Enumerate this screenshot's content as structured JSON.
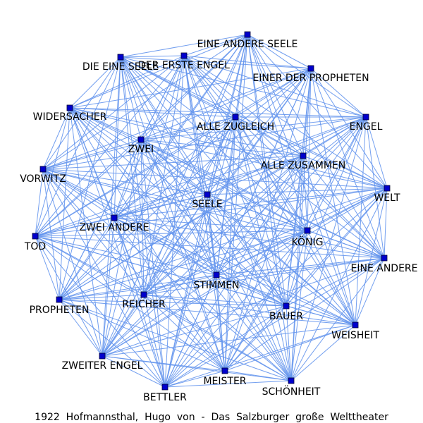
{
  "caption": "1922  Hofmannsthal,  Hugo  von  -  Das  Salzburger  große  Welttheater",
  "colors": {
    "edge": "#6495ed",
    "node": "#0000cc",
    "text": "#000000",
    "background": "#ffffff"
  },
  "nodes": [
    {
      "id": "eine-andere-seele",
      "label": "EINE ANDERE SEELE"
    },
    {
      "id": "der-erste-engel",
      "label": "DER ERSTE ENGEL"
    },
    {
      "id": "die-eine-seele",
      "label": "DIE EINE SEELE"
    },
    {
      "id": "einer-der-propheten",
      "label": "EINER DER PROPHETEN"
    },
    {
      "id": "widersacher",
      "label": "WIDERSACHER"
    },
    {
      "id": "alle-zugleich",
      "label": "ALLE ZUGLEICH"
    },
    {
      "id": "engel",
      "label": "ENGEL"
    },
    {
      "id": "zwei",
      "label": "ZWEI"
    },
    {
      "id": "alle-zusammen",
      "label": "ALLE ZUSAMMEN"
    },
    {
      "id": "vorwitz",
      "label": "VORWITZ"
    },
    {
      "id": "welt",
      "label": "WELT"
    },
    {
      "id": "seele",
      "label": "SEELE"
    },
    {
      "id": "zwei-andere",
      "label": "ZWEI ANDERE"
    },
    {
      "id": "koenig",
      "label": "KÖNIG"
    },
    {
      "id": "tod",
      "label": "TOD"
    },
    {
      "id": "eine-andere",
      "label": "EINE ANDERE"
    },
    {
      "id": "stimmen",
      "label": "STIMMEN"
    },
    {
      "id": "reicher",
      "label": "REICHER"
    },
    {
      "id": "propheten",
      "label": "PROPHETEN"
    },
    {
      "id": "bauer",
      "label": "BAUER"
    },
    {
      "id": "weisheit",
      "label": "WEISHEIT"
    },
    {
      "id": "zweiter-engel",
      "label": "ZWEITER ENGEL"
    },
    {
      "id": "meister",
      "label": "MEISTER"
    },
    {
      "id": "schoenheit",
      "label": "SCHÖNHEIT"
    },
    {
      "id": "bettler",
      "label": "BETTLER"
    }
  ],
  "edges": "all-pairs"
}
